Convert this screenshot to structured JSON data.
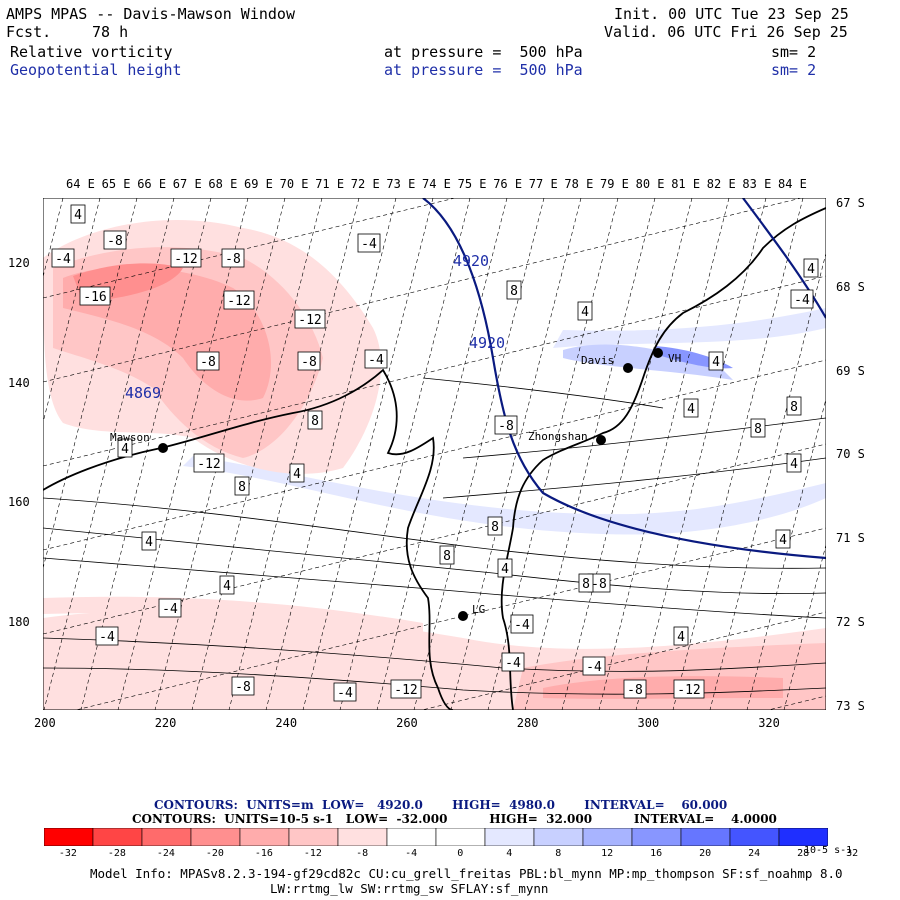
{
  "header": {
    "title": "AMPS MPAS -- Davis-Mawson Window",
    "fcst_label": "Fcst.",
    "fcst_value": "78 h",
    "init": "Init. 00 UTC Tue 23 Sep 25",
    "valid": "Valid. 06 UTC Fri 26 Sep 25",
    "field1": {
      "name": "Relative vorticity",
      "level": "at pressure =  500 hPa",
      "sm": "sm= 2"
    },
    "field2": {
      "name": "Geopotential height",
      "level": "at pressure =  500 hPa",
      "sm": "sm= 2"
    }
  },
  "axes": {
    "top_lon": [
      "64 E",
      "65 E",
      "66 E",
      "67 E",
      "68 E",
      "69 E",
      "70 E",
      "71 E",
      "72 E",
      "73 E",
      "74 E",
      "75 E",
      "76 E",
      "77 E",
      "78 E",
      "79 E",
      "80 E",
      "81 E",
      "82 E",
      "83 E",
      "84 E"
    ],
    "right_lat": [
      "67 S",
      "68 S",
      "69 S",
      "70 S",
      "71 S",
      "72 S",
      "73 S"
    ],
    "left_y": [
      "120",
      "140",
      "160",
      "180"
    ],
    "bottom_x": [
      "200",
      "220",
      "240",
      "260",
      "280",
      "300",
      "320"
    ]
  },
  "stations": {
    "mawson": "Mawson",
    "davis": "Davis",
    "zhongshan": "Zhongshan",
    "vh": "VH",
    "lg": "LG"
  },
  "height_labels": [
    "4869",
    "4920",
    "4920"
  ],
  "vorticity_labels": [
    "4",
    "-8",
    "-4",
    "-12",
    "-8",
    "-16",
    "-12",
    "-12",
    "-8",
    "-8",
    "-4",
    "-4",
    "8",
    "4",
    "-8",
    "-12",
    "4",
    "8",
    "4",
    "4",
    "8",
    "8",
    "4",
    "-4",
    "-4",
    "-8",
    "-4",
    "-12",
    "-8",
    "-12",
    "-8",
    "4",
    "-4",
    "-4",
    "-4",
    "8",
    "8",
    "4",
    "4",
    "4",
    "8",
    "8",
    "4",
    "4",
    "4",
    "-4"
  ],
  "legend": {
    "line1": "CONTOURS:  UNITS=m  LOW=   4920.0       HIGH=  4980.0       INTERVAL=    60.000",
    "line2": "CONTOURS:  UNITS=10-5 s-1   LOW=  -32.000          HIGH=  32.000          INTERVAL=    4.0000",
    "ticks": [
      "-32",
      "-28",
      "-24",
      "-20",
      "-16",
      "-12",
      "-8",
      "-4",
      "0",
      "4",
      "8",
      "12",
      "16",
      "20",
      "24",
      "28",
      "32"
    ],
    "units": "10-5 s-1",
    "colors": [
      "#ff0000",
      "#ff4545",
      "#ff6b6b",
      "#ff8f8f",
      "#ffacac",
      "#ffc6c6",
      "#ffe0e0",
      "#ffffff",
      "#ffffff",
      "#e4e8ff",
      "#c8d0ff",
      "#a8b4ff",
      "#8896ff",
      "#6676ff",
      "#4455ff",
      "#1f2fff"
    ]
  },
  "footer": {
    "line1": "Model Info: MPASv8.2.3-194-gf29cd82c CU:cu_grell_freitas PBL:bl_mynn MP:mp_thompson SF:sf_noahmp 8.0",
    "line2": "LW:rrtmg_lw SW:rrtmg_sw SFLAY:sf_mynn"
  }
}
